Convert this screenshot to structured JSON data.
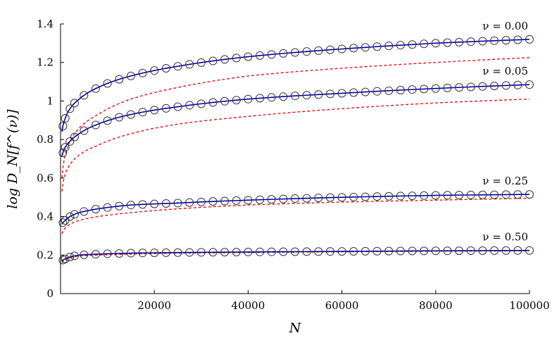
{
  "chart_data": {
    "type": "line",
    "xlabel": "N",
    "ylabel": "log D_N[f^(ν)]",
    "xlim": [
      0,
      100000
    ],
    "ylim": [
      0,
      1.4
    ],
    "xticks": [
      20000,
      40000,
      60000,
      80000,
      100000
    ],
    "xtick_labels": [
      "20000",
      "40000",
      "60000",
      "80000",
      "100000"
    ],
    "yticks": [
      0,
      0.2,
      0.4,
      0.6,
      0.8,
      1.0,
      1.2,
      1.4
    ],
    "ytick_labels": [
      "0",
      "0.2",
      "0.4",
      "0.6",
      "0.8",
      "1",
      "1.2",
      "1.4"
    ],
    "grid": false,
    "colors": {
      "solid": "#0000aa",
      "dashed": "#ee0000",
      "marker": "#333333"
    },
    "series": [
      {
        "name": "ν = 0.00",
        "solid": {
          "x": [
            300,
            1000,
            2000,
            4000,
            8000,
            15000,
            25000,
            40000,
            60000,
            80000,
            100000
          ],
          "y": [
            0.84,
            0.91,
            0.96,
            1.01,
            1.07,
            1.13,
            1.18,
            1.23,
            1.27,
            1.3,
            1.32
          ]
        },
        "dashed": {
          "x": [
            300,
            1000,
            2000,
            4000,
            8000,
            15000,
            25000,
            40000,
            60000,
            80000,
            100000
          ],
          "y": [
            0.6,
            0.72,
            0.79,
            0.86,
            0.93,
            1.01,
            1.07,
            1.13,
            1.17,
            1.2,
            1.225
          ]
        }
      },
      {
        "name": "ν = 0.05",
        "solid": {
          "x": [
            300,
            1000,
            2000,
            4000,
            8000,
            15000,
            25000,
            40000,
            60000,
            80000,
            100000
          ],
          "y": [
            0.71,
            0.76,
            0.79,
            0.83,
            0.88,
            0.93,
            0.97,
            1.01,
            1.04,
            1.065,
            1.085
          ]
        },
        "dashed": {
          "x": [
            300,
            1000,
            2000,
            4000,
            8000,
            15000,
            25000,
            40000,
            60000,
            80000,
            100000
          ],
          "y": [
            0.53,
            0.62,
            0.67,
            0.72,
            0.77,
            0.83,
            0.88,
            0.92,
            0.96,
            0.99,
            1.01
          ]
        }
      },
      {
        "name": "ν = 0.25",
        "solid": {
          "x": [
            300,
            1000,
            2000,
            4000,
            8000,
            15000,
            25000,
            40000,
            60000,
            80000,
            100000
          ],
          "y": [
            0.36,
            0.38,
            0.4,
            0.42,
            0.44,
            0.46,
            0.47,
            0.485,
            0.5,
            0.51,
            0.515
          ]
        },
        "dashed": {
          "x": [
            300,
            1000,
            2000,
            4000,
            8000,
            15000,
            25000,
            40000,
            60000,
            80000,
            100000
          ],
          "y": [
            0.31,
            0.34,
            0.36,
            0.38,
            0.4,
            0.42,
            0.44,
            0.46,
            0.475,
            0.485,
            0.495
          ]
        }
      },
      {
        "name": "ν = 0.50",
        "solid": {
          "x": [
            300,
            1000,
            2000,
            4000,
            8000,
            15000,
            25000,
            40000,
            60000,
            80000,
            100000
          ],
          "y": [
            0.17,
            0.18,
            0.19,
            0.2,
            0.205,
            0.21,
            0.213,
            0.216,
            0.219,
            0.222,
            0.224
          ]
        },
        "dashed": {
          "x": [
            300,
            1000,
            2000,
            4000,
            8000,
            15000,
            25000,
            40000,
            60000,
            80000,
            100000
          ],
          "y": [
            0.16,
            0.175,
            0.185,
            0.195,
            0.2,
            0.205,
            0.21,
            0.213,
            0.217,
            0.22,
            0.222
          ]
        }
      }
    ],
    "marker_x": [
      500,
      1000,
      2000,
      3000,
      5000,
      7500,
      10000,
      12500,
      15000,
      17500,
      20000,
      22500,
      25000,
      27500,
      30000,
      32500,
      35000,
      37500,
      40000,
      42500,
      45000,
      47500,
      50000,
      52500,
      55000,
      57500,
      60000,
      62500,
      65000,
      67500,
      70000,
      72500,
      75000,
      77500,
      80000,
      82500,
      85000,
      87500,
      90000,
      92500,
      95000,
      97500,
      100000
    ]
  }
}
